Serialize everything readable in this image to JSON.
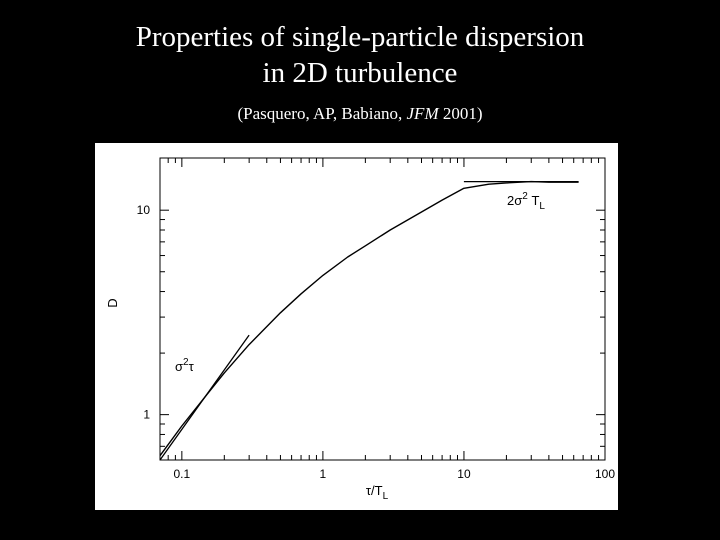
{
  "slide": {
    "title_line1": "Properties of single-particle dispersion",
    "title_line2": "in 2D turbulence",
    "citation_prefix": "(Pasquero, AP, Babiano, ",
    "citation_journal": "JFM",
    "citation_suffix": " 2001)"
  },
  "colors": {
    "background": "#000000",
    "text": "#ffffff",
    "panel": "#ffffff",
    "ink": "#000000"
  },
  "chart_data": {
    "type": "line",
    "title": "",
    "xlabel": "τ/T_L",
    "xlabel_main": "τ/T",
    "xlabel_sub": "L",
    "ylabel": "D",
    "xscale": "log",
    "yscale": "log",
    "xlim": [
      0.07,
      100
    ],
    "ylim": [
      0.6,
      18
    ],
    "grid": false,
    "x_ticks": [
      {
        "value": 0.1,
        "label": "0.1"
      },
      {
        "value": 1,
        "label": "1"
      },
      {
        "value": 10,
        "label": "10"
      },
      {
        "value": 100,
        "label": "100"
      }
    ],
    "y_ticks": [
      {
        "value": 1,
        "label": "1"
      },
      {
        "value": 10,
        "label": "10"
      }
    ],
    "series": [
      {
        "x": [
          0.07,
          0.1,
          0.15,
          0.2,
          0.3,
          0.5,
          0.7,
          1,
          1.5,
          2,
          3,
          5,
          7,
          10,
          15,
          20,
          30,
          40,
          50,
          65
        ],
        "y": [
          0.63,
          0.88,
          1.25,
          1.6,
          2.2,
          3.15,
          3.9,
          4.8,
          5.9,
          6.7,
          8.0,
          9.8,
          11.2,
          12.8,
          13.4,
          13.6,
          13.8,
          13.7,
          13.7,
          13.7
        ]
      }
    ],
    "annotations": [
      {
        "id": "short-time-asymptote",
        "label_main": "σ",
        "label_sup": "2",
        "label_tail": "τ",
        "x": [
          0.07,
          0.3
        ],
        "y": [
          0.6,
          2.45
        ]
      },
      {
        "id": "long-time-asymptote",
        "label_main": "2σ",
        "label_sup": "2",
        "label_tail": " T",
        "label_sub": "L",
        "x": [
          10,
          65
        ],
        "y": [
          13.8,
          13.8
        ]
      }
    ]
  }
}
